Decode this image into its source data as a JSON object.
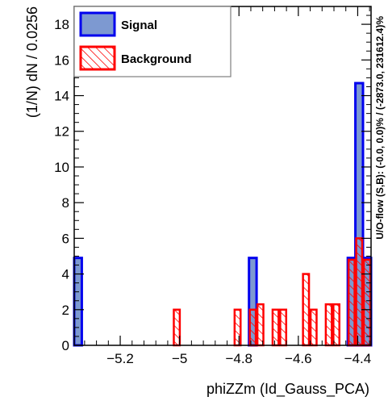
{
  "chart_data": {
    "type": "bar",
    "histtype": "step-filled-overlay",
    "xlabel": "phiZZm (Id_Gauss_PCA)",
    "ylabel": "(1/N) dN / 0.0256",
    "side_note": "U/O-flow (S,B): (-0.0, 0.0)% / (-2873.0, 231612.4)%",
    "xlim": [
      -5.355,
      -4.355
    ],
    "ylim": [
      0,
      19
    ],
    "bin_width": 0.0256,
    "x_ticks": [
      -5.2,
      -5.0,
      -4.8,
      -4.6,
      -4.4
    ],
    "x_tick_labels": [
      "−5.2",
      "−5",
      "−4.8",
      "−4.6",
      "−4.4"
    ],
    "y_ticks": [
      0,
      2,
      4,
      6,
      8,
      10,
      12,
      14,
      16,
      18
    ],
    "y_tick_labels": [
      "0",
      "2",
      "4",
      "6",
      "8",
      "10",
      "12",
      "14",
      "16",
      "18"
    ],
    "legend_position": "top-left",
    "series": [
      {
        "name": "Signal",
        "style": "filled",
        "line_color": "#0000ee",
        "fill_color": "#7d99d1",
        "bins": [
          {
            "x0": -5.355,
            "x1": -5.3294,
            "y": 4.9
          },
          {
            "x0": -4.7662,
            "x1": -4.7406,
            "y": 4.9
          },
          {
            "x0": -4.4334,
            "x1": -4.4078,
            "y": 4.9
          },
          {
            "x0": -4.4078,
            "x1": -4.3822,
            "y": 14.7
          },
          {
            "x0": -4.3822,
            "x1": -4.355,
            "y": 4.9
          }
        ]
      },
      {
        "name": "Background",
        "style": "hatched",
        "line_color": "#ff0000",
        "fill_color": "#ff0000",
        "bins": [
          {
            "x0": -5.0222,
            "x1": -4.9966,
            "y": 2.0
          },
          {
            "x0": -4.8174,
            "x1": -4.7918,
            "y": 2.0
          },
          {
            "x0": -4.7662,
            "x1": -4.7406,
            "y": 2.0
          },
          {
            "x0": -4.7406,
            "x1": -4.715,
            "y": 2.3
          },
          {
            "x0": -4.6894,
            "x1": -4.6638,
            "y": 2.0
          },
          {
            "x0": -4.6638,
            "x1": -4.6382,
            "y": 2.0
          },
          {
            "x0": -4.587,
            "x1": -4.5614,
            "y": 4.0
          },
          {
            "x0": -4.5614,
            "x1": -4.5358,
            "y": 2.0
          },
          {
            "x0": -4.5102,
            "x1": -4.4846,
            "y": 2.3
          },
          {
            "x0": -4.4846,
            "x1": -4.459,
            "y": 2.3
          },
          {
            "x0": -4.4334,
            "x1": -4.4078,
            "y": 4.8
          },
          {
            "x0": -4.4078,
            "x1": -4.3822,
            "y": 6.0
          },
          {
            "x0": -4.3822,
            "x1": -4.355,
            "y": 4.8
          }
        ]
      }
    ]
  }
}
